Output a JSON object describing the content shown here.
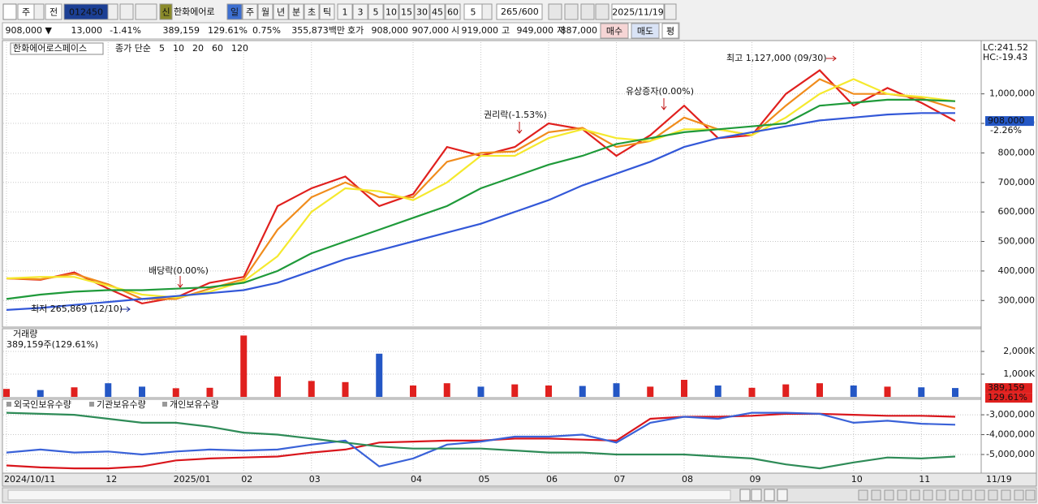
{
  "toolbar": {
    "period_type": "주",
    "range": "전",
    "code": "012450",
    "badge": "신",
    "name": "한화에어로",
    "intervals": [
      "일",
      "주",
      "월",
      "년",
      "분",
      "초",
      "틱"
    ],
    "minutes": [
      "1",
      "3",
      "5",
      "10",
      "15",
      "30",
      "45",
      "60"
    ],
    "count_unit": "5",
    "count": "265",
    "count_max": "/600",
    "date": "2025/11/19"
  },
  "quote": {
    "price": "908,000 ▼",
    "change": "13,000",
    "change_pct": "-1.41%",
    "volume": "389,159",
    "volume_ratio": "129.61%",
    "turnover": "0.75%",
    "amount": "355,873백만",
    "bid_label": "호가",
    "ask": "908,000",
    "bid": "907,000",
    "open_label": "시",
    "open": "919,000",
    "high_label": "고",
    "high": "949,000",
    "low_label": "저",
    "low": "887,000",
    "buy": "매수",
    "sell": "매도",
    "avg": "평"
  },
  "chart_data": [
    {
      "type": "line",
      "title": "한화에어로스페이스",
      "subtitle": "종가 단순",
      "categories": [
        "2024/10/11",
        null,
        null,
        "12",
        null,
        "2025/01",
        null,
        "02",
        null,
        "03",
        null,
        null,
        "04",
        null,
        "05",
        null,
        "06",
        null,
        "07",
        null,
        "08",
        null,
        "09",
        null,
        null,
        "10",
        null,
        "11",
        null
      ],
      "x_end_label": "11/19",
      "series": [
        {
          "name": "5",
          "color": "#e0201e",
          "values": [
            375000,
            370000,
            395000,
            340000,
            290000,
            310000,
            360000,
            380000,
            620000,
            680000,
            720000,
            620000,
            660000,
            820000,
            790000,
            820000,
            900000,
            880000,
            790000,
            860000,
            960000,
            850000,
            860000,
            1000000,
            1080000,
            960000,
            1020000,
            970000,
            908000
          ]
        },
        {
          "name": "10",
          "color": "#f08c1c",
          "values": [
            375000,
            372000,
            390000,
            355000,
            305000,
            305000,
            340000,
            372000,
            540000,
            650000,
            700000,
            650000,
            650000,
            770000,
            800000,
            805000,
            870000,
            885000,
            820000,
            840000,
            920000,
            880000,
            860000,
            960000,
            1050000,
            1000000,
            1000000,
            985000,
            950000
          ]
        },
        {
          "name": "20",
          "color": "#f5e92e",
          "values": [
            375000,
            380000,
            380000,
            350000,
            320000,
            310000,
            330000,
            365000,
            450000,
            600000,
            680000,
            670000,
            640000,
            700000,
            790000,
            790000,
            850000,
            880000,
            850000,
            840000,
            880000,
            880000,
            860000,
            920000,
            1000000,
            1050000,
            1000000,
            990000,
            975000
          ]
        },
        {
          "name": "60",
          "color": "#1f9a3a",
          "values": [
            305000,
            320000,
            330000,
            335000,
            335000,
            340000,
            345000,
            360000,
            400000,
            460000,
            500000,
            540000,
            580000,
            620000,
            680000,
            720000,
            760000,
            790000,
            830000,
            850000,
            870000,
            880000,
            890000,
            900000,
            960000,
            970000,
            980000,
            980000,
            975000
          ]
        },
        {
          "name": "120",
          "color": "#3358d8",
          "values": [
            268000,
            275000,
            285000,
            295000,
            305000,
            315000,
            325000,
            335000,
            360000,
            400000,
            440000,
            470000,
            500000,
            530000,
            560000,
            600000,
            640000,
            690000,
            730000,
            770000,
            820000,
            850000,
            870000,
            890000,
            910000,
            920000,
            930000,
            935000,
            935000
          ]
        }
      ],
      "ylim": [
        210000,
        1175000
      ],
      "yticks": [
        {
          "value": 300000,
          "label": "300,000"
        },
        {
          "value": 400000,
          "label": "400,000"
        },
        {
          "value": 500000,
          "label": "500,000"
        },
        {
          "value": 600000,
          "label": "600,000"
        },
        {
          "value": 700000,
          "label": "700,000"
        },
        {
          "value": 800000,
          "label": "800,000"
        },
        {
          "value": 900000,
          "label": "900,000"
        },
        {
          "value": 1000000,
          "label": "1,000,000"
        }
      ],
      "grid": true,
      "annotations": [
        "최고 1,127,000 (09/30)",
        "최저 265,869 (12/10)",
        "배당락(0.00%)",
        "권리락(-1.53%)",
        "유상증자(0.00%)"
      ],
      "lc": "LC:241.52",
      "hc": "HC:-19.43",
      "last_price": {
        "value": 908000,
        "label": "908,000"
      },
      "last_change": "-2.26%"
    },
    {
      "type": "bar",
      "title": "거래량",
      "subtitle": "389,159주(129.61%)",
      "values": [
        350000,
        300000,
        420000,
        600000,
        450000,
        380000,
        400000,
        2700000,
        900000,
        700000,
        650000,
        1900000,
        500000,
        600000,
        450000,
        550000,
        500000,
        480000,
        600000,
        450000,
        750000,
        500000,
        400000,
        550000,
        600000,
        500000,
        450000,
        420000,
        389159
      ],
      "up_color": "#e0201e",
      "down_color": "#2457c5",
      "ylim": [
        0,
        3000000
      ],
      "yticks": [
        {
          "value": 1000000,
          "label": "1,000K"
        },
        {
          "value": 2000000,
          "label": "2,000K"
        }
      ],
      "last_label": "389,159",
      "last_ratio": "129.61%"
    },
    {
      "type": "line",
      "series": [
        {
          "name": "외국인보유수량",
          "color": "#d9161c",
          "values": [
            -5550000,
            -5650000,
            -5700000,
            -5700000,
            -5600000,
            -5300000,
            -5200000,
            -5150000,
            -5100000,
            -4900000,
            -4750000,
            -4400000,
            -4350000,
            -4300000,
            -4300000,
            -4200000,
            -4200000,
            -4250000,
            -4300000,
            -3200000,
            -3100000,
            -3100000,
            -3050000,
            -2950000,
            -2950000,
            -3000000,
            -3050000,
            -3050000,
            -3100000
          ]
        },
        {
          "name": "기관보유수량",
          "color": "#3a62d8",
          "values": [
            -4900000,
            -4750000,
            -4900000,
            -4850000,
            -5000000,
            -4850000,
            -4750000,
            -4800000,
            -4750000,
            -4500000,
            -4300000,
            -5600000,
            -5200000,
            -4500000,
            -4350000,
            -4100000,
            -4100000,
            -4000000,
            -4400000,
            -3400000,
            -3100000,
            -3200000,
            -2900000,
            -2900000,
            -2950000,
            -3400000,
            -3300000,
            -3450000,
            -3500000
          ]
        },
        {
          "name": "개인보유수량",
          "color": "#2e8b57",
          "values": [
            -2900000,
            -2950000,
            -3000000,
            -3200000,
            -3400000,
            -3400000,
            -3600000,
            -3900000,
            -4000000,
            -4200000,
            -4400000,
            -4600000,
            -4700000,
            -4700000,
            -4700000,
            -4800000,
            -4900000,
            -4900000,
            -5000000,
            -5000000,
            -5000000,
            -5100000,
            -5200000,
            -5500000,
            -5700000,
            -5400000,
            -5150000,
            -5200000,
            -5100000
          ]
        }
      ],
      "ylim": [
        -5940000,
        -2220000
      ],
      "yticks": [
        {
          "value": -3000000,
          "label": "-3,000,000"
        },
        {
          "value": -4000000,
          "label": "-4,000,000"
        },
        {
          "value": -5000000,
          "label": "-5,000,000"
        }
      ]
    }
  ]
}
